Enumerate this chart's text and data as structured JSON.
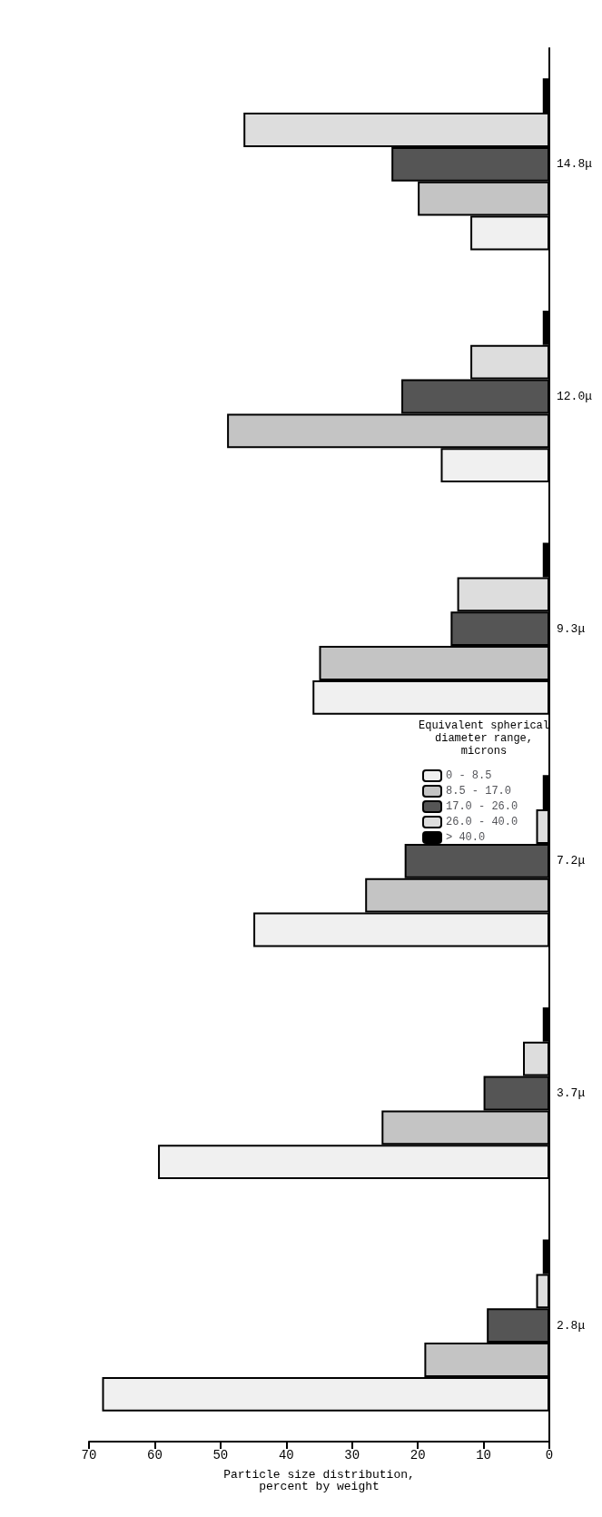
{
  "chart_data": {
    "type": "bar",
    "orientation": "horizontal",
    "xlabel": "Particle size distribution,\npercent by weight",
    "legend_title": "Equivalent spherical\ndiameter range,\nmicrons",
    "categories": [
      "14.8μ",
      "12.0μ",
      "9.3μ",
      "7.2μ",
      "3.7μ",
      "2.8μ"
    ],
    "series": [
      {
        "name": "0 - 8.5",
        "color": "#f0f0f0",
        "values": [
          12,
          16.5,
          36,
          45,
          59.5,
          68
        ]
      },
      {
        "name": "8.5 - 17.0",
        "color": "#c4c4c4",
        "values": [
          20,
          49,
          35,
          28,
          25.5,
          19
        ]
      },
      {
        "name": "17.0 - 26.0",
        "color": "#555555",
        "values": [
          24,
          22.5,
          15,
          22,
          10,
          9.5
        ]
      },
      {
        "name": "26.0 - 40.0",
        "color": "#dddddd",
        "values": [
          46.5,
          12,
          14,
          2,
          4,
          2
        ]
      },
      {
        "name": "> 40.0",
        "color": "#000000",
        "values": [
          1,
          1,
          1,
          1,
          1,
          1
        ]
      }
    ],
    "xlim": [
      70,
      0
    ],
    "xticks": [
      0,
      10,
      20,
      30,
      40,
      50,
      60,
      70
    ],
    "grid": false,
    "legend": "right"
  }
}
